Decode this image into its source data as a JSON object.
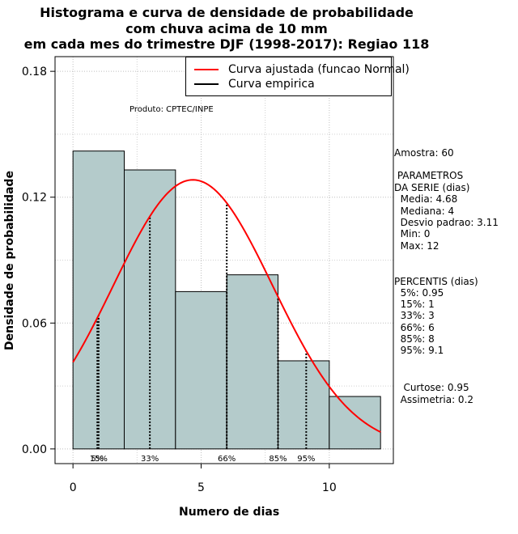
{
  "chart_data": {
    "type": "histogram",
    "title_lines": [
      "Histograma e curva de densidade de probabilidade",
      "com chuva acima de 10 mm",
      "em cada mes do trimestre DJF (1998-2017): Regiao 118"
    ],
    "xlabel": "Numero de dias",
    "ylabel": "Densidade de probabilidade",
    "xlim": [
      -0.7,
      12.5
    ],
    "ylim": [
      -0.007,
      0.187
    ],
    "x_ticks": [
      0,
      5,
      10
    ],
    "y_ticks": [
      0.0,
      0.06,
      0.12,
      0.18
    ],
    "y_tick_labels": [
      "0.00",
      "0.06",
      "0.12",
      "0.18"
    ],
    "grid": true,
    "bars": [
      {
        "x0": 0,
        "x1": 2,
        "density": 0.142
      },
      {
        "x0": 2,
        "x1": 4,
        "density": 0.133
      },
      {
        "x0": 4,
        "x1": 6,
        "density": 0.075
      },
      {
        "x0": 6,
        "x1": 8,
        "density": 0.083
      },
      {
        "x0": 8,
        "x1": 10,
        "density": 0.042
      },
      {
        "x0": 10,
        "x1": 12,
        "density": 0.025
      }
    ],
    "bar_color": "#b4cbcb",
    "fitted_curve": {
      "name": "Curva ajustada (funcao Normal)",
      "mean": 4.68,
      "sd": 3.11,
      "x_range": [
        0,
        12
      ],
      "color": "#ff0000"
    },
    "empirical_curve": {
      "name": "Curva empirica",
      "color": "#000000"
    },
    "percentile_lines": [
      {
        "label": "5%",
        "x": 0.95
      },
      {
        "label": "15%",
        "x": 1
      },
      {
        "label": "33%",
        "x": 3
      },
      {
        "label": "66%",
        "x": 6
      },
      {
        "label": "85%",
        "x": 8
      },
      {
        "label": "95%",
        "x": 9.1
      }
    ],
    "legend_position": "top-right"
  },
  "credit": "Produto: CPTEC/INPE",
  "stats": {
    "amostra": "Amostra: 60",
    "param_header_1": " PARAMETROS",
    "param_header_2": "DA SERIE (dias)",
    "media": "  Media: 4.68",
    "mediana": "  Mediana: 4",
    "desvio": "  Desvio padrao: 3.11",
    "min": "  Min: 0",
    "max": "  Max: 12",
    "percentis_header": "PERCENTIS (dias)",
    "p5": "  5%: 0.95",
    "p15": "  15%: 1",
    "p33": "  33%: 3",
    "p66": "  66%: 6",
    "p85": "  85%: 8",
    "p95": "  95%: 9.1",
    "curtose": "   Curtose: 0.95",
    "assimetria": "  Assimetria: 0.2"
  }
}
